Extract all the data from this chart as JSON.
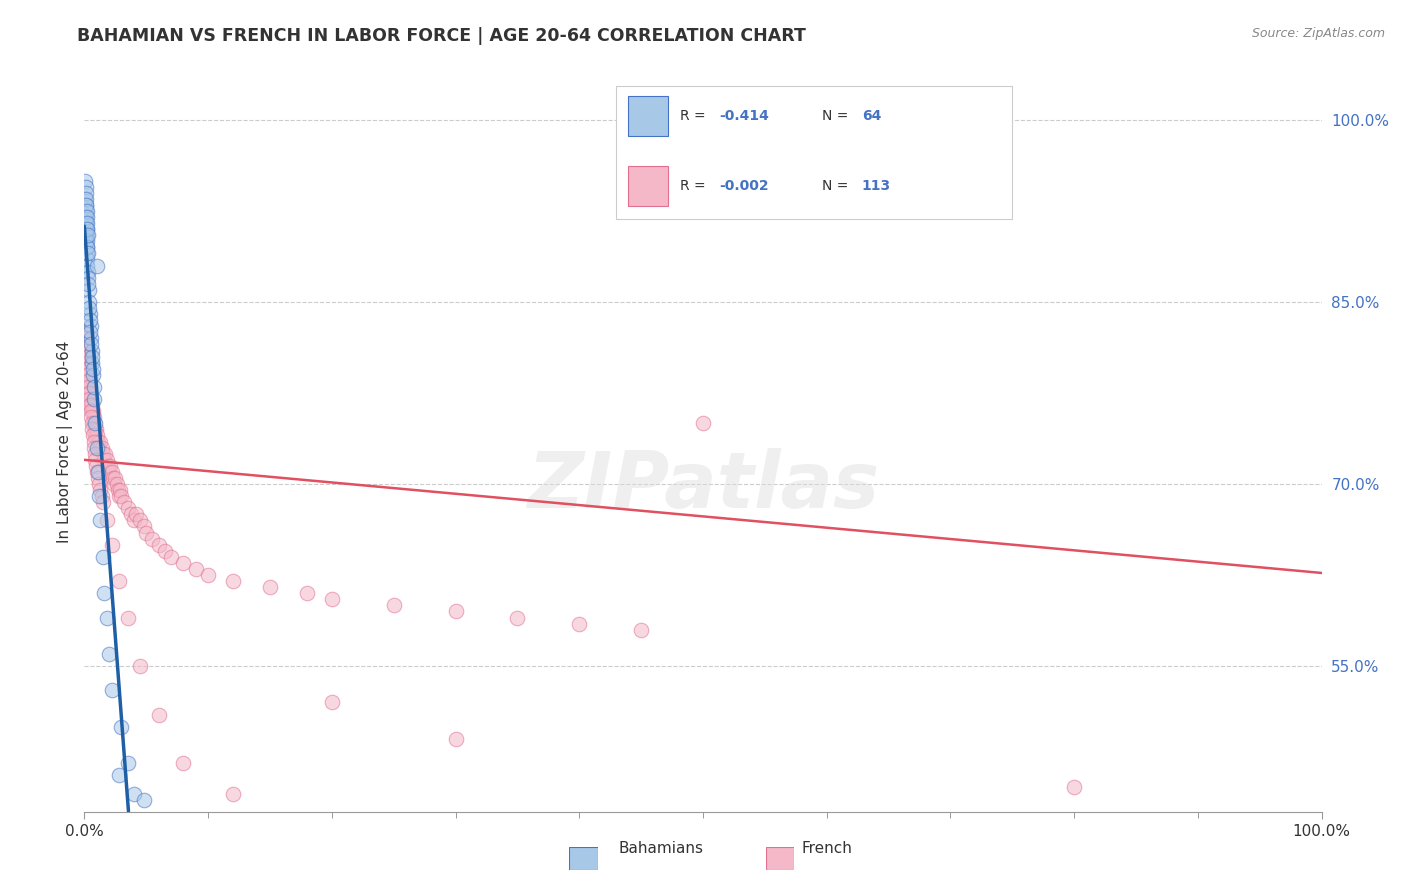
{
  "title": "BAHAMIAN VS FRENCH IN LABOR FORCE | AGE 20-64 CORRELATION CHART",
  "source_text": "Source: ZipAtlas.com",
  "ylabel": "In Labor Force | Age 20-64",
  "xlim": [
    0.0,
    100.0
  ],
  "ylim": [
    43.0,
    104.0
  ],
  "ytick_values": [
    55.0,
    70.0,
    85.0,
    100.0
  ],
  "xtick_values": [
    0.0,
    100.0
  ],
  "blue_fill": "#a8c8e8",
  "blue_edge": "#4472c4",
  "pink_fill": "#f4b8c8",
  "pink_edge": "#e07090",
  "blue_line_color": "#1f5fa6",
  "pink_line_color": "#e05060",
  "background_color": "#ffffff",
  "legend_R_blue": "-0.414",
  "legend_N_blue": "64",
  "legend_R_pink": "-0.002",
  "legend_N_pink": "113",
  "blue_x": [
    0.08,
    0.1,
    0.12,
    0.14,
    0.16,
    0.18,
    0.2,
    0.22,
    0.25,
    0.28,
    0.08,
    0.1,
    0.12,
    0.14,
    0.16,
    0.18,
    0.2,
    0.22,
    0.25,
    0.28,
    0.08,
    0.1,
    0.12,
    0.14,
    0.16,
    0.18,
    0.2,
    0.22,
    0.25,
    0.28,
    0.3,
    0.35,
    0.4,
    0.45,
    0.5,
    0.55,
    0.6,
    0.65,
    0.7,
    0.8,
    0.9,
    1.0,
    1.2,
    1.5,
    1.8,
    2.2,
    2.8,
    1.3,
    0.32,
    0.38,
    0.42,
    0.48,
    0.55,
    0.62,
    0.68,
    0.75,
    1.1,
    1.6,
    2.0,
    3.0,
    3.5,
    4.0,
    4.8,
    1.0
  ],
  "blue_y": [
    92.0,
    91.5,
    91.0,
    90.5,
    90.0,
    89.5,
    89.0,
    88.5,
    88.0,
    87.5,
    93.5,
    93.0,
    92.5,
    92.0,
    91.5,
    91.0,
    90.5,
    90.0,
    89.5,
    89.0,
    95.0,
    94.5,
    94.0,
    93.5,
    93.0,
    92.5,
    92.0,
    91.5,
    91.0,
    90.5,
    87.0,
    86.0,
    85.0,
    84.0,
    83.0,
    82.0,
    81.0,
    80.0,
    79.0,
    77.0,
    75.0,
    73.0,
    69.0,
    64.0,
    59.0,
    53.0,
    46.0,
    67.0,
    86.5,
    84.5,
    83.5,
    82.5,
    81.5,
    80.5,
    79.5,
    78.0,
    71.0,
    61.0,
    56.0,
    50.0,
    47.0,
    44.5,
    44.0,
    88.0
  ],
  "pink_x": [
    0.08,
    0.1,
    0.12,
    0.14,
    0.16,
    0.18,
    0.2,
    0.22,
    0.25,
    0.28,
    0.3,
    0.35,
    0.4,
    0.45,
    0.5,
    0.55,
    0.6,
    0.65,
    0.7,
    0.75,
    0.8,
    0.85,
    0.9,
    0.95,
    1.0,
    1.1,
    1.2,
    1.3,
    1.4,
    1.5,
    1.6,
    1.7,
    1.8,
    1.9,
    2.0,
    2.1,
    2.2,
    2.3,
    2.4,
    2.5,
    2.6,
    2.7,
    2.8,
    2.9,
    3.0,
    3.2,
    3.5,
    3.8,
    4.0,
    4.2,
    4.5,
    4.8,
    5.0,
    5.5,
    6.0,
    6.5,
    7.0,
    8.0,
    9.0,
    10.0,
    12.0,
    15.0,
    18.0,
    20.0,
    25.0,
    30.0,
    35.0,
    40.0,
    45.0,
    50.0,
    0.08,
    0.1,
    0.12,
    0.14,
    0.16,
    0.18,
    0.2,
    0.22,
    0.25,
    0.28,
    0.3,
    0.35,
    0.4,
    0.45,
    0.5,
    0.55,
    0.6,
    0.65,
    0.7,
    0.75,
    0.8,
    0.85,
    0.9,
    0.95,
    1.0,
    1.1,
    1.2,
    1.3,
    1.4,
    1.5,
    1.8,
    2.2,
    2.8,
    3.5,
    4.5,
    6.0,
    8.0,
    12.0,
    20.0,
    30.0,
    50.0,
    60.0,
    70.0,
    80.0
  ],
  "pink_y": [
    82.0,
    81.5,
    81.0,
    80.5,
    80.0,
    80.5,
    79.5,
    79.0,
    78.5,
    78.0,
    79.0,
    78.5,
    78.0,
    77.5,
    77.0,
    76.5,
    76.0,
    76.5,
    76.0,
    75.5,
    75.0,
    74.5,
    74.0,
    74.5,
    74.0,
    73.5,
    73.0,
    73.5,
    73.0,
    72.5,
    72.0,
    72.5,
    72.0,
    71.5,
    71.0,
    71.5,
    71.0,
    70.5,
    70.0,
    70.5,
    70.0,
    69.5,
    69.0,
    69.5,
    69.0,
    68.5,
    68.0,
    67.5,
    67.0,
    67.5,
    67.0,
    66.5,
    66.0,
    65.5,
    65.0,
    64.5,
    64.0,
    63.5,
    63.0,
    62.5,
    62.0,
    61.5,
    61.0,
    60.5,
    60.0,
    59.5,
    59.0,
    58.5,
    58.0,
    75.0,
    83.0,
    82.5,
    82.0,
    81.5,
    81.0,
    80.5,
    80.0,
    79.5,
    79.0,
    78.5,
    78.0,
    77.5,
    77.0,
    76.5,
    76.0,
    75.5,
    75.0,
    74.5,
    74.0,
    73.5,
    73.0,
    72.5,
    72.0,
    71.5,
    71.0,
    70.5,
    70.0,
    69.5,
    69.0,
    68.5,
    67.0,
    65.0,
    62.0,
    59.0,
    55.0,
    51.0,
    47.0,
    44.5,
    52.0,
    49.0,
    100.0,
    95.0,
    100.0,
    45.0
  ]
}
